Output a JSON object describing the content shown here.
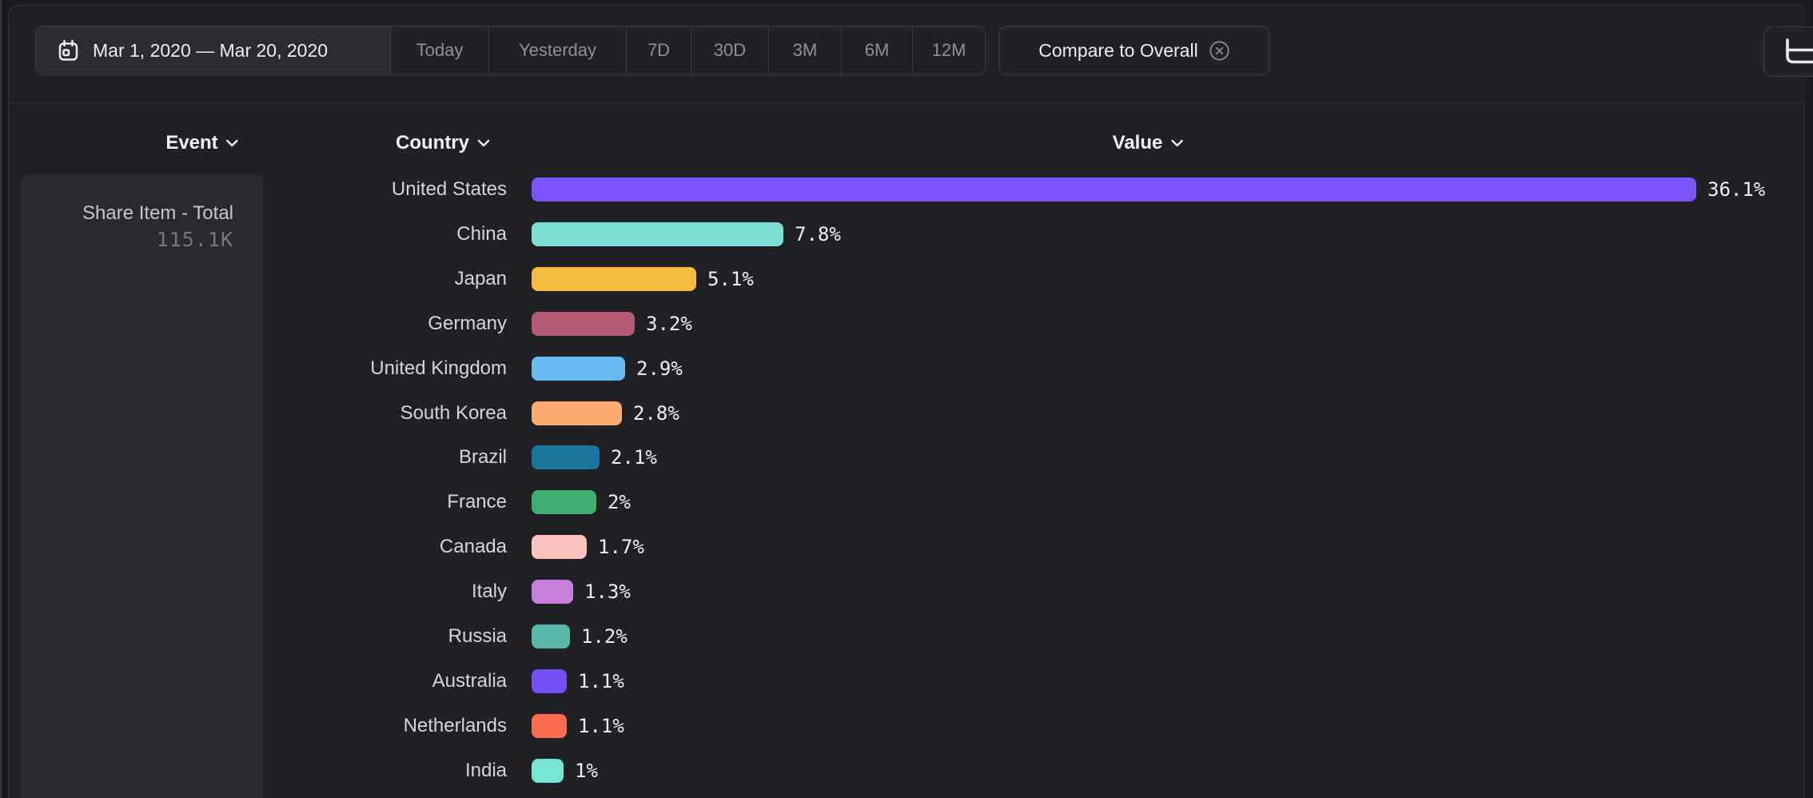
{
  "toolbar": {
    "date_range": {
      "label": "Mar 1, 2020 — Mar 20, 2020",
      "icon": "calendar-icon"
    },
    "presets": [
      {
        "label": "Today"
      },
      {
        "label": "Yesterday"
      },
      {
        "label": "7D"
      },
      {
        "label": "30D"
      },
      {
        "label": "3M"
      },
      {
        "label": "6M"
      },
      {
        "label": "12M"
      }
    ],
    "compare_chip": {
      "label": "Compare to Overall",
      "icon": "circle-x-icon"
    },
    "chart_type_button": {
      "icon": "horizontal-bar-chart-icon"
    }
  },
  "columns": {
    "event": {
      "label": "Event"
    },
    "country": {
      "label": "Country"
    },
    "value": {
      "label": "Value"
    }
  },
  "event_panel": {
    "name": "Share Item - Total",
    "total": "115.1K"
  },
  "chart_data": {
    "type": "bar",
    "orientation": "horizontal",
    "series_name": "Share Item - Total",
    "value_unit": "%",
    "max_value": 36.1,
    "legend_position": "none",
    "grid": false,
    "categories": [
      "United States",
      "China",
      "Japan",
      "Germany",
      "United Kingdom",
      "South Korea",
      "Brazil",
      "France",
      "Canada",
      "Italy",
      "Russia",
      "Australia",
      "Netherlands",
      "India"
    ],
    "values": [
      36.1,
      7.8,
      5.1,
      3.2,
      2.9,
      2.8,
      2.1,
      2.0,
      1.7,
      1.3,
      1.2,
      1.1,
      1.1,
      1.0
    ],
    "rows": [
      {
        "country": "United States",
        "value": 36.1,
        "label": "36.1%",
        "color": "#7b54fa"
      },
      {
        "country": "China",
        "value": 7.8,
        "label": "7.8%",
        "color": "#7de0d3"
      },
      {
        "country": "Japan",
        "value": 5.1,
        "label": "5.1%",
        "color": "#f7bb43"
      },
      {
        "country": "Germany",
        "value": 3.2,
        "label": "3.2%",
        "color": "#b25a74"
      },
      {
        "country": "United Kingdom",
        "value": 2.9,
        "label": "2.9%",
        "color": "#6cbaf2"
      },
      {
        "country": "South Korea",
        "value": 2.8,
        "label": "2.8%",
        "color": "#fbaa70"
      },
      {
        "country": "Brazil",
        "value": 2.1,
        "label": "2.1%",
        "color": "#19759c"
      },
      {
        "country": "France",
        "value": 2.0,
        "label": "2%",
        "color": "#3fae6e"
      },
      {
        "country": "Canada",
        "value": 1.7,
        "label": "1.7%",
        "color": "#fbc4bf"
      },
      {
        "country": "Italy",
        "value": 1.3,
        "label": "1.3%",
        "color": "#c680da"
      },
      {
        "country": "Russia",
        "value": 1.2,
        "label": "1.2%",
        "color": "#58b9a9"
      },
      {
        "country": "Australia",
        "value": 1.1,
        "label": "1.1%",
        "color": "#7450f5"
      },
      {
        "country": "Netherlands",
        "value": 1.1,
        "label": "1.1%",
        "color": "#fc6d4f"
      },
      {
        "country": "India",
        "value": 1.0,
        "label": "1%",
        "color": "#76e5d2"
      }
    ]
  }
}
